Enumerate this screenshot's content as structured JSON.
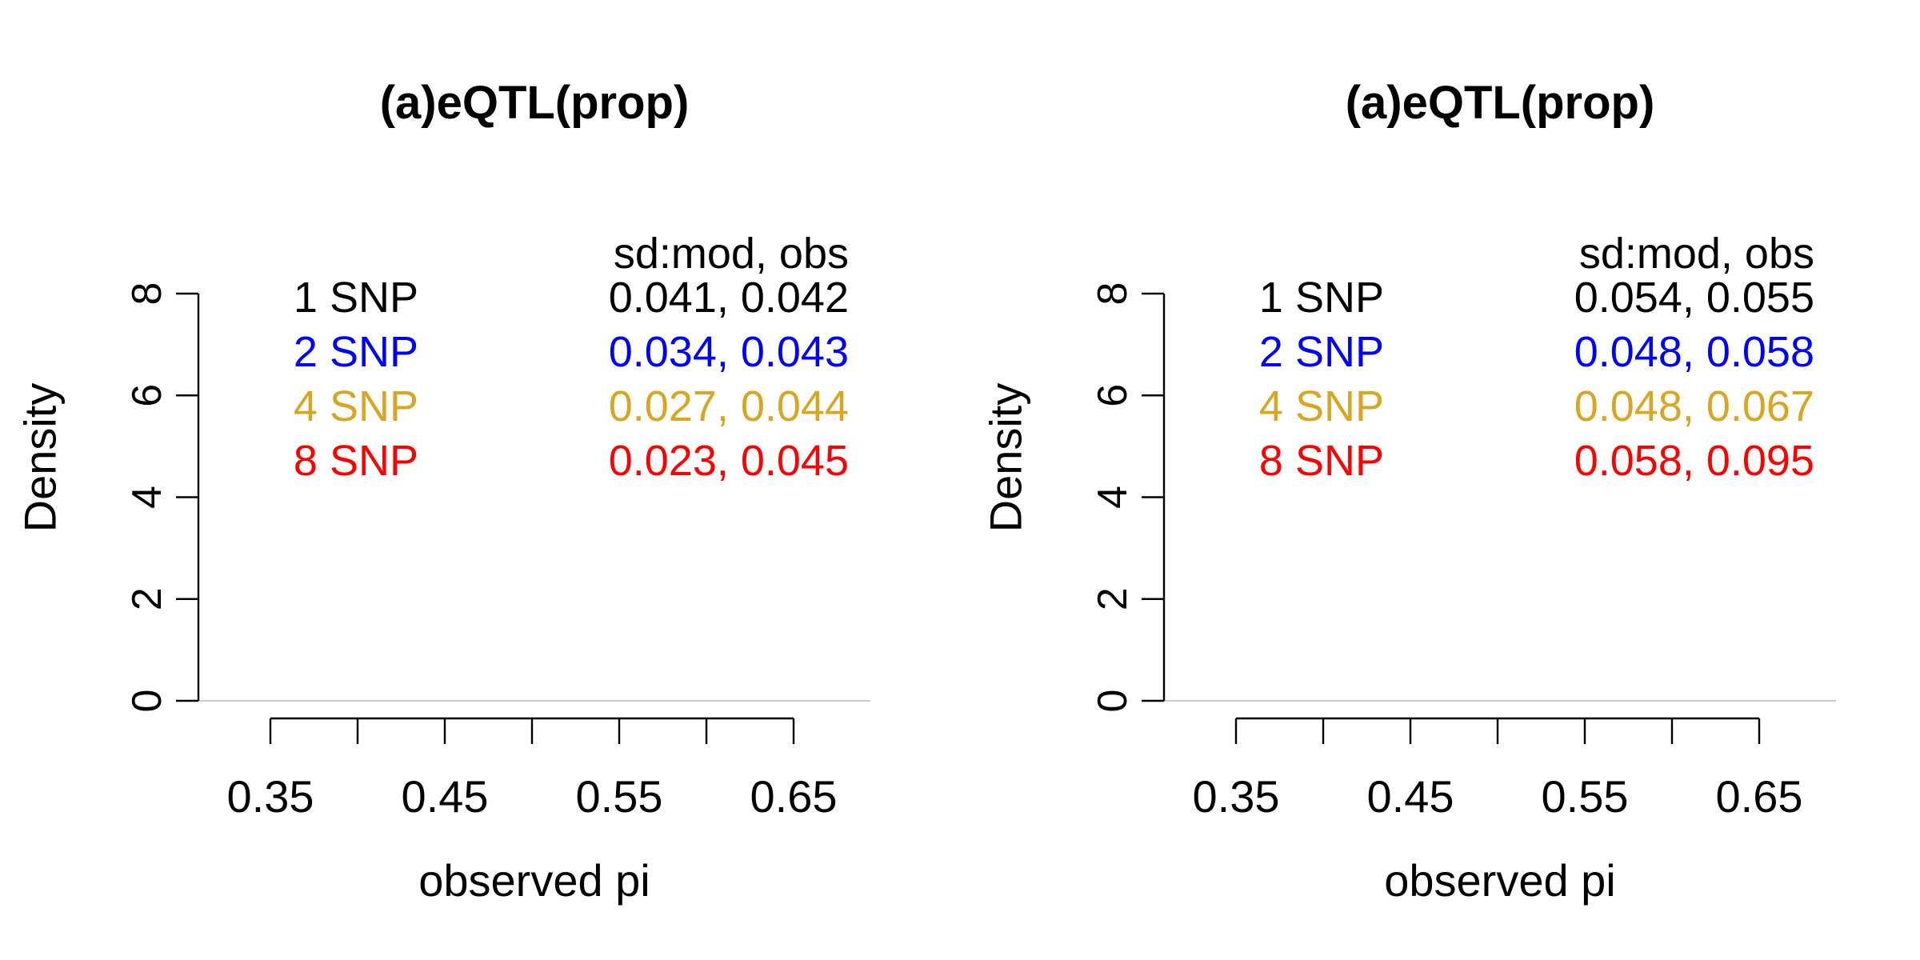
{
  "chart_data": [
    {
      "type": "line",
      "title": "(a)eQTL(prop)",
      "xlabel": "observed pi",
      "ylabel": "Density",
      "xlim": [
        0.35,
        0.65
      ],
      "ylim": [
        0,
        8
      ],
      "x_ticks": [
        0.35,
        0.4,
        0.45,
        0.5,
        0.55,
        0.6,
        0.65
      ],
      "x_tick_labels": [
        "0.35",
        "",
        "0.45",
        "",
        "0.55",
        "",
        "0.65"
      ],
      "y_ticks": [
        0,
        2,
        4,
        6,
        8
      ],
      "y_tick_labels": [
        "0",
        "2",
        "4",
        "6",
        "8"
      ],
      "grid": false,
      "legend_placement": "top",
      "legend_header": "sd:mod, obs",
      "series": [
        {
          "name": "1 SNP",
          "color": "#000000",
          "stats": "0.041, 0.042"
        },
        {
          "name": "2 SNP",
          "color": "#0000ff",
          "stats": "0.034, 0.043"
        },
        {
          "name": "4 SNP",
          "color": "#daa520",
          "stats": "0.027, 0.044"
        },
        {
          "name": "8 SNP",
          "color": "#ff0000",
          "stats": "0.023, 0.045"
        }
      ]
    },
    {
      "type": "line",
      "title": "(a)eQTL(prop)",
      "xlabel": "observed pi",
      "ylabel": "Density",
      "xlim": [
        0.35,
        0.65
      ],
      "ylim": [
        0,
        8
      ],
      "x_ticks": [
        0.35,
        0.4,
        0.45,
        0.5,
        0.55,
        0.6,
        0.65
      ],
      "x_tick_labels": [
        "0.35",
        "",
        "0.45",
        "",
        "0.55",
        "",
        "0.65"
      ],
      "y_ticks": [
        0,
        2,
        4,
        6,
        8
      ],
      "y_tick_labels": [
        "0",
        "2",
        "4",
        "6",
        "8"
      ],
      "grid": false,
      "legend_placement": "top",
      "legend_header": "sd:mod, obs",
      "series": [
        {
          "name": "1 SNP",
          "color": "#000000",
          "stats": "0.054, 0.055"
        },
        {
          "name": "2 SNP",
          "color": "#0000ff",
          "stats": "0.048, 0.058"
        },
        {
          "name": "4 SNP",
          "color": "#daa520",
          "stats": "0.048, 0.067"
        },
        {
          "name": "8 SNP",
          "color": "#ff0000",
          "stats": "0.058, 0.095"
        }
      ]
    }
  ]
}
